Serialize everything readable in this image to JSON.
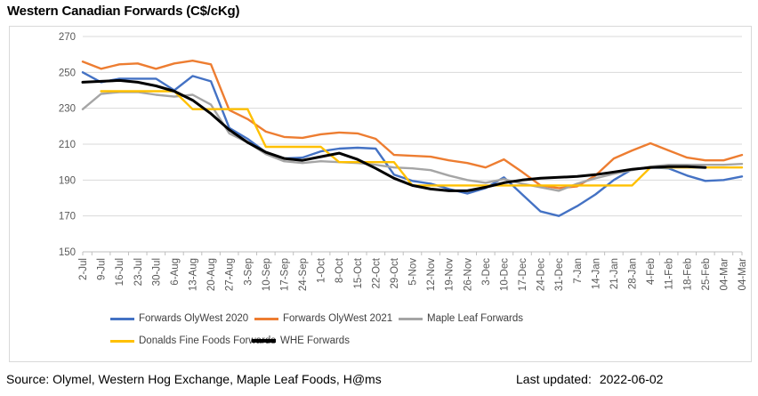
{
  "title": "Western Canadian Forwards (C$/cKg)",
  "footer": {
    "source": "Source: Olymel, Western Hog Exchange, Maple Leaf Foods, H@ms",
    "last_updated_label": "Last updated:",
    "last_updated_value": "2022-06-02"
  },
  "axis": {
    "y_tick_labels": [
      "150",
      "170",
      "190",
      "210",
      "230",
      "250",
      "270"
    ],
    "label_color": "#595959",
    "gridline_color": "#D9D9D9",
    "axisline_color": "#BFBFBF"
  },
  "chart_data": {
    "type": "line",
    "title": "Western Canadian Forwards (C$/cKg)",
    "xlabel": "",
    "ylabel": "",
    "ylim": [
      150,
      270
    ],
    "ytick_step": 20,
    "grid": true,
    "legend_position": "bottom",
    "categories": [
      "2-Jul",
      "9-Jul",
      "16-Jul",
      "23-Jul",
      "30-Jul",
      "6-Aug",
      "13-Aug",
      "20-Aug",
      "27-Aug",
      "3-Sep",
      "10-Sep",
      "17-Sep",
      "24-Sep",
      "1-Oct",
      "8-Oct",
      "15-Oct",
      "22-Oct",
      "29-Oct",
      "5-Nov",
      "12-Nov",
      "19-Nov",
      "26-Nov",
      "3-Dec",
      "10-Dec",
      "17-Dec",
      "24-Dec",
      "31-Dec",
      "7-Jan",
      "14-Jan",
      "21-Jan",
      "28-Jan",
      "4-Feb",
      "11-Feb",
      "18-Feb",
      "25-Feb",
      "04-Mar",
      "04-Mar"
    ],
    "series": [
      {
        "name": "Forwards OlyWest 2020",
        "color": "#4472C4",
        "stroke_width": 2.4,
        "values": [
          250,
          244.5,
          246.5,
          246.5,
          246.5,
          240,
          248,
          245,
          219,
          213,
          205.5,
          202,
          202.5,
          206,
          207.5,
          208,
          207.5,
          193,
          189.5,
          188,
          185,
          182.5,
          185.5,
          191.5,
          182,
          172.5,
          170,
          175.5,
          182,
          190,
          196,
          197,
          196.5,
          192.5,
          189.5,
          190,
          192
        ]
      },
      {
        "name": "Forwards OlyWest 2021",
        "color": "#ED7D31",
        "stroke_width": 2.4,
        "values": [
          256,
          252,
          254.5,
          255,
          252,
          255,
          256.5,
          254.5,
          229,
          224,
          217,
          214,
          213.5,
          215.5,
          216.5,
          216,
          213,
          204,
          203.5,
          203,
          201,
          199.5,
          197,
          201.5,
          194.5,
          187,
          185.5,
          186.5,
          192.5,
          202,
          206.5,
          210.5,
          206.5,
          202.5,
          201,
          201,
          204
        ]
      },
      {
        "name": "Maple Leaf Forwards",
        "color": "#A5A5A5",
        "stroke_width": 2.4,
        "values": [
          229.5,
          238,
          239,
          239,
          237.5,
          236.5,
          237.5,
          232,
          216,
          211,
          204.5,
          200.5,
          199.5,
          200.5,
          200,
          199.5,
          198.5,
          197,
          196.5,
          195.5,
          192.5,
          190,
          188.5,
          190.5,
          188,
          186,
          184,
          188,
          191,
          193.5,
          195.5,
          197.5,
          198.5,
          198.5,
          198.5,
          198.5,
          199
        ]
      },
      {
        "name": "Donalds Fine Foods Forwards",
        "color": "#FFC000",
        "stroke_width": 2.4,
        "values": [
          null,
          239.5,
          239.5,
          239.5,
          239.5,
          239.5,
          229.5,
          229.5,
          229.5,
          229.5,
          208.5,
          208.5,
          208.5,
          208.5,
          200,
          200,
          200,
          200,
          187,
          187,
          187,
          187,
          187,
          187,
          187,
          187,
          187,
          187,
          187,
          187,
          187,
          197,
          197,
          197,
          197,
          197,
          197
        ]
      },
      {
        "name": "WHE Forwards",
        "color": "#000000",
        "stroke_width": 3,
        "values": [
          244.5,
          245,
          245.5,
          244.5,
          242.5,
          239.5,
          234.5,
          227,
          218,
          211,
          205.5,
          202,
          201,
          203,
          205,
          201.5,
          196.5,
          191,
          187,
          185,
          184,
          184,
          186,
          188.5,
          190,
          191,
          191.5,
          192,
          193,
          194.5,
          196,
          197,
          197.5,
          197.5,
          197,
          null,
          null
        ]
      }
    ]
  }
}
